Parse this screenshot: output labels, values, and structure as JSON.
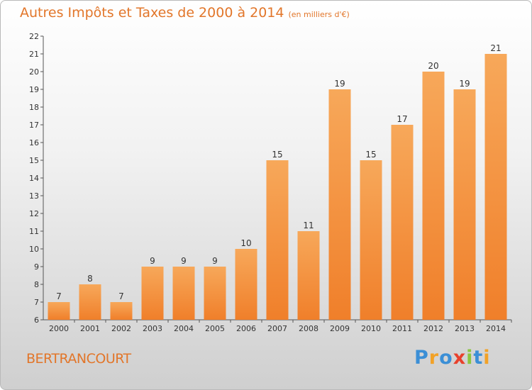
{
  "chart_data": {
    "type": "bar",
    "title": "Autres Impôts et Taxes de 2000 à 2014",
    "unit_label": "(en milliers d'€)",
    "categories": [
      "2000",
      "2001",
      "2002",
      "2003",
      "2004",
      "2005",
      "2006",
      "2007",
      "2008",
      "2009",
      "2010",
      "2011",
      "2012",
      "2013",
      "2014"
    ],
    "values": [
      7,
      8,
      7,
      9,
      9,
      9,
      10,
      15,
      11,
      19,
      15,
      17,
      20,
      19,
      21
    ],
    "ylim": [
      6,
      22
    ],
    "yticks": [
      6,
      7,
      8,
      9,
      10,
      11,
      12,
      13,
      14,
      15,
      16,
      17,
      18,
      19,
      20,
      21,
      22
    ],
    "grid": false,
    "bar_color": "#f07f2a",
    "bar_color_light": "#f7a85a",
    "title_color": "#e2762a"
  },
  "place_name": "BERTRANCOURT",
  "logo": {
    "text": "Proxiti",
    "letters": [
      {
        "ch": "P",
        "color": "#3b8fd6"
      },
      {
        "ch": "r",
        "color": "#f2a227"
      },
      {
        "ch": "o",
        "color": "#3b8fd6"
      },
      {
        "ch": "x",
        "color": "#e8412c"
      },
      {
        "ch": "i",
        "color": "#8cc63f"
      },
      {
        "ch": "t",
        "color": "#3b8fd6"
      },
      {
        "ch": "i",
        "color": "#f2a227"
      }
    ]
  }
}
